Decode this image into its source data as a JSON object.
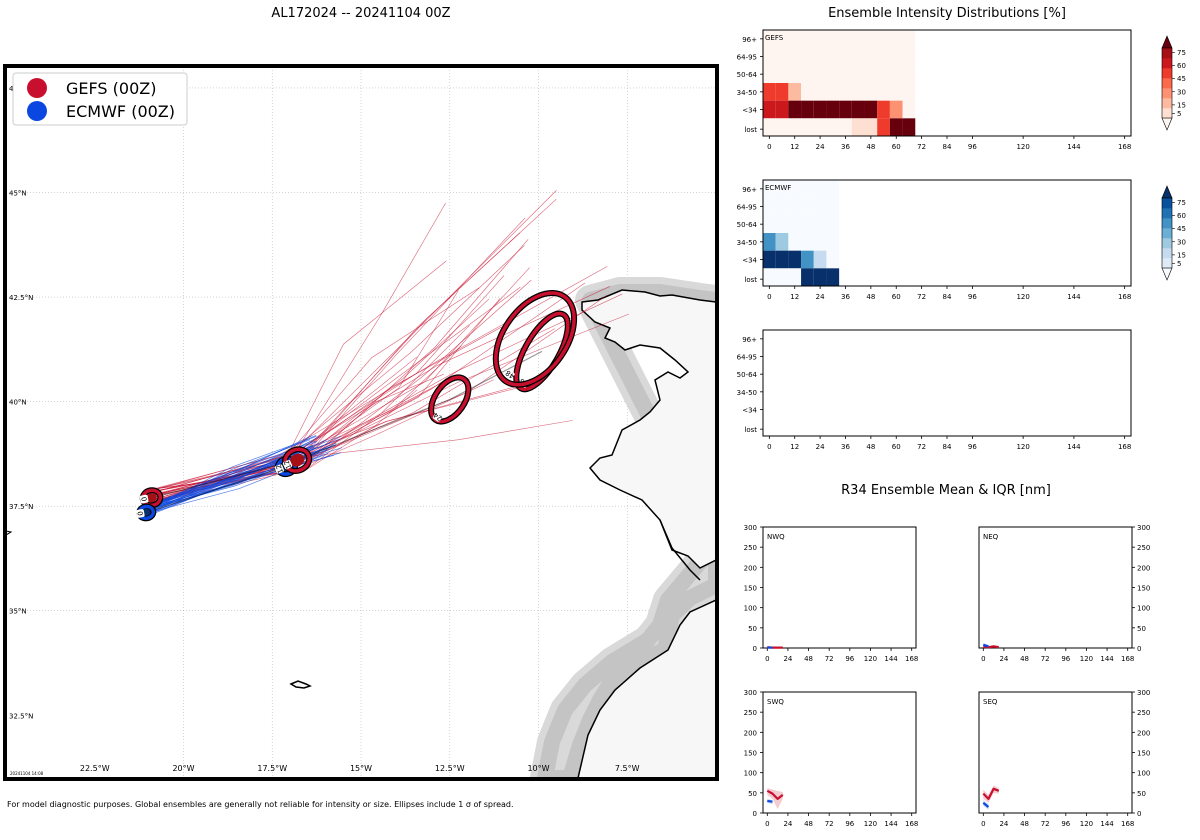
{
  "page": {
    "title": "AL172024 -- 20241104 00Z",
    "footnote": "For model diagnostic purposes. Global ensembles are generally not reliable for intensity or size. Ellipses include 1 σ of spread.",
    "timestamp": "20241104 14:08"
  },
  "colors": {
    "gefs": "#c8102e",
    "gefs_dark": "#a50f15",
    "ecmwf": "#0a47e0",
    "ecmwf_dark": "#08306b",
    "land": "#f7f7f7",
    "ocean": "#ffffff"
  },
  "chart_data": [
    {
      "id": "track_map",
      "type": "scatter",
      "title": "",
      "lon_range": [
        -25,
        -5
      ],
      "lat_range": [
        31,
        48
      ],
      "xticks": [
        -22.5,
        -20,
        -17.5,
        -15,
        -12.5,
        -10,
        -7.5
      ],
      "xtick_labels": [
        "22.5°W",
        "20°W",
        "17.5°W",
        "15°W",
        "12.5°W",
        "10°W",
        "7.5°W"
      ],
      "yticks": [
        32.5,
        35,
        37.5,
        40,
        42.5,
        45,
        47.5
      ],
      "ytick_labels": [
        "32.5°N",
        "35°N",
        "37.5°N",
        "40°N",
        "42.5°N",
        "45°N",
        "47.5°N"
      ],
      "legend": [
        {
          "label": "GEFS (00Z)",
          "color": "#c8102e"
        },
        {
          "label": "ECMWF (00Z)",
          "color": "#0a47e0"
        }
      ],
      "legend_position": "top-left",
      "ellipses": [
        {
          "model": "GEFS",
          "hour": "0",
          "lon": -20.9,
          "lat": 37.7,
          "a": 0.25,
          "b": 0.18,
          "angle": 10
        },
        {
          "model": "ECMWF",
          "hour": "0",
          "lon": -21.05,
          "lat": 37.35,
          "a": 0.2,
          "b": 0.14,
          "angle": 10
        },
        {
          "model": "ECMWF",
          "hour": "12",
          "lon": -17.1,
          "lat": 38.45,
          "a": 0.25,
          "b": 0.18,
          "angle": 20
        },
        {
          "model": "GEFS",
          "hour": "12",
          "lon": -16.8,
          "lat": 38.6,
          "a": 0.35,
          "b": 0.25,
          "angle": 25
        },
        {
          "model": "GEFS",
          "hour": "24",
          "lon": -12.5,
          "lat": 40.05,
          "a": 0.7,
          "b": 0.35,
          "angle": 55
        },
        {
          "model": "GEFS",
          "hour": "36",
          "lon": -9.9,
          "lat": 41.2,
          "a": 1.2,
          "b": 0.4,
          "angle": 60
        },
        {
          "model": "GEFS",
          "hour": "48",
          "lon": -10.1,
          "lat": 41.5,
          "a": 1.45,
          "b": 0.75,
          "angle": 55
        }
      ],
      "mean_tracks": {
        "GEFS": [
          [
            -20.9,
            37.7
          ],
          [
            -16.8,
            38.6
          ],
          [
            -12.5,
            40.05
          ],
          [
            -9.9,
            41.2
          ]
        ],
        "ECMWF": [
          [
            -21.05,
            37.35
          ],
          [
            -17.1,
            38.45
          ]
        ]
      }
    },
    {
      "id": "gefs_intensity",
      "type": "heatmap",
      "title": "Ensemble Intensity Distributions [%]",
      "label": "GEFS",
      "x_hours": [
        0,
        6,
        12,
        18,
        24,
        30,
        36,
        42,
        48,
        54,
        60,
        66
      ],
      "categories": [
        "96+",
        "64-95",
        "50-64",
        "34-50",
        "<34",
        "lost"
      ],
      "values": [
        [
          2,
          2,
          2,
          2,
          2,
          2,
          2,
          2,
          2,
          2,
          2,
          2
        ],
        [
          2,
          2,
          2,
          2,
          2,
          2,
          2,
          2,
          2,
          2,
          2,
          2
        ],
        [
          2,
          2,
          2,
          2,
          2,
          2,
          2,
          2,
          2,
          2,
          2,
          2
        ],
        [
          45,
          50,
          15,
          2,
          2,
          2,
          2,
          2,
          2,
          2,
          2,
          2
        ],
        [
          55,
          55,
          85,
          95,
          95,
          95,
          95,
          95,
          95,
          45,
          30,
          2
        ],
        [
          2,
          2,
          2,
          2,
          2,
          2,
          2,
          10,
          10,
          50,
          80,
          90
        ]
      ],
      "xticks": [
        0,
        12,
        24,
        36,
        48,
        60,
        72,
        84,
        96,
        120,
        144,
        168
      ],
      "xlim": [
        -3,
        171
      ],
      "colorbar_ticks": [
        5,
        15,
        30,
        45,
        60,
        75
      ]
    },
    {
      "id": "ecmwf_intensity",
      "type": "heatmap",
      "label": "ECMWF",
      "x_hours": [
        0,
        6,
        12,
        18,
        24,
        30
      ],
      "categories": [
        "96+",
        "64-95",
        "50-64",
        "34-50",
        "<34",
        "lost"
      ],
      "values": [
        [
          2,
          2,
          2,
          2,
          2,
          2
        ],
        [
          2,
          2,
          2,
          2,
          2,
          2
        ],
        [
          2,
          2,
          2,
          2,
          2,
          2
        ],
        [
          45,
          25,
          2,
          2,
          2,
          2
        ],
        [
          85,
          95,
          95,
          50,
          15,
          2
        ],
        [
          2,
          2,
          2,
          75,
          95,
          95
        ]
      ],
      "xticks": [
        0,
        12,
        24,
        36,
        48,
        60,
        72,
        84,
        96,
        120,
        144,
        168
      ],
      "xlim": [
        -3,
        171
      ],
      "colorbar_ticks": [
        5,
        15,
        30,
        45,
        60,
        75
      ]
    },
    {
      "id": "empty_intensity",
      "type": "heatmap",
      "label": "",
      "categories": [
        "96+",
        "64-95",
        "50-64",
        "34-50",
        "<34",
        "lost"
      ],
      "xticks": [
        0,
        12,
        24,
        36,
        48,
        60,
        72,
        84,
        96,
        120,
        144,
        168
      ],
      "xlim": [
        -3,
        171
      ]
    },
    {
      "id": "r34",
      "type": "line",
      "title": "R34 Ensemble Mean & IQR [nm]",
      "xticks": [
        0,
        24,
        48,
        72,
        96,
        120,
        144,
        168
      ],
      "yticks": [
        0,
        50,
        100,
        150,
        200,
        250,
        300
      ],
      "xlim": [
        -5,
        173
      ],
      "ylim": [
        0,
        300
      ],
      "quadrants": [
        {
          "name": "NWQ",
          "series": [
            {
              "model": "GEFS",
              "x": [
                0,
                6,
                12,
                18
              ],
              "y": [
                2,
                1,
                1,
                1
              ],
              "lo": [
                0,
                0,
                0,
                0
              ],
              "hi": [
                4,
                3,
                3,
                2
              ]
            },
            {
              "model": "ECMWF",
              "x": [
                0,
                6
              ],
              "y": [
                1,
                1
              ],
              "lo": [
                0,
                0
              ],
              "hi": [
                2,
                2
              ]
            }
          ]
        },
        {
          "name": "NEQ",
          "series": [
            {
              "model": "GEFS",
              "x": [
                0,
                6,
                12,
                18
              ],
              "y": [
                3,
                2,
                4,
                2
              ],
              "lo": [
                0,
                0,
                0,
                0
              ],
              "hi": [
                6,
                5,
                7,
                4
              ]
            },
            {
              "model": "ECMWF",
              "x": [
                0,
                6
              ],
              "y": [
                8,
                4
              ],
              "lo": [
                4,
                0
              ],
              "hi": [
                12,
                8
              ]
            }
          ]
        },
        {
          "name": "SWQ",
          "series": [
            {
              "model": "GEFS",
              "x": [
                0,
                6,
                12,
                18
              ],
              "y": [
                55,
                48,
                35,
                45
              ],
              "lo": [
                45,
                35,
                10,
                35
              ],
              "hi": [
                62,
                58,
                55,
                52
              ]
            },
            {
              "model": "ECMWF",
              "x": [
                0,
                6
              ],
              "y": [
                30,
                28
              ],
              "lo": [
                25,
                22
              ],
              "hi": [
                35,
                32
              ]
            }
          ]
        },
        {
          "name": "SEQ",
          "series": [
            {
              "model": "GEFS",
              "x": [
                0,
                6,
                12,
                18
              ],
              "y": [
                48,
                35,
                60,
                55
              ],
              "lo": [
                35,
                25,
                50,
                48
              ],
              "hi": [
                58,
                45,
                68,
                62
              ]
            },
            {
              "model": "ECMWF",
              "x": [
                0,
                6
              ],
              "y": [
                25,
                15
              ],
              "lo": [
                18,
                8
              ],
              "hi": [
                32,
                22
              ]
            }
          ]
        }
      ]
    }
  ]
}
